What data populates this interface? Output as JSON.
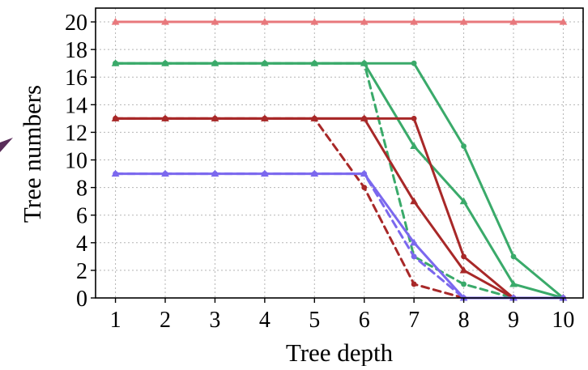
{
  "chart_data": {
    "type": "line",
    "title": "",
    "xlabel": "Tree depth",
    "ylabel": "Tree numbers",
    "xlim": [
      0.6,
      10.4
    ],
    "ylim": [
      0,
      21
    ],
    "x_ticks": [
      1,
      2,
      3,
      4,
      5,
      6,
      7,
      8,
      9,
      10
    ],
    "y_ticks": [
      0,
      2,
      4,
      6,
      8,
      10,
      12,
      14,
      16,
      18,
      20
    ],
    "grid": true,
    "legend": "none",
    "x": [
      1,
      2,
      3,
      4,
      5,
      6,
      7,
      8,
      9,
      10
    ],
    "series": [
      {
        "color": "#e8787c",
        "line_style": "solid",
        "marker": "triangle",
        "values": [
          20,
          20,
          20,
          20,
          20,
          20,
          20,
          20,
          20,
          20
        ]
      },
      {
        "color": "#3aaa6a",
        "line_style": "solid",
        "marker": "triangle",
        "values": [
          17,
          17,
          17,
          17,
          17,
          17,
          11,
          7,
          1,
          0
        ]
      },
      {
        "color": "#3aaa6a",
        "line_style": "solid",
        "marker": "circle",
        "values": [
          17,
          17,
          17,
          17,
          17,
          17,
          17,
          11,
          3,
          0
        ]
      },
      {
        "color": "#3aaa6a",
        "line_style": "dashed",
        "marker": "circle",
        "values": [
          17,
          17,
          17,
          17,
          17,
          17,
          3,
          1,
          0,
          0
        ]
      },
      {
        "color": "#a82828",
        "line_style": "solid",
        "marker": "triangle",
        "values": [
          13,
          13,
          13,
          13,
          13,
          13,
          7,
          2,
          0,
          0
        ]
      },
      {
        "color": "#a82828",
        "line_style": "solid",
        "marker": "circle",
        "values": [
          13,
          13,
          13,
          13,
          13,
          13,
          13,
          3,
          0,
          0
        ]
      },
      {
        "color": "#a82828",
        "line_style": "dashed",
        "marker": "circle",
        "values": [
          13,
          13,
          13,
          13,
          13,
          8,
          1,
          0,
          0,
          0
        ]
      },
      {
        "color": "#7b68ee",
        "line_style": "solid",
        "marker": "triangle",
        "values": [
          9,
          9,
          9,
          9,
          9,
          9,
          4,
          0,
          0,
          0
        ]
      },
      {
        "color": "#7b68ee",
        "line_style": "dashed",
        "marker": "circle",
        "values": [
          9,
          9,
          9,
          9,
          9,
          9,
          3,
          0,
          0,
          0
        ]
      }
    ]
  },
  "decoration": {
    "left_edge_arrow_color": "#5a2d5a"
  }
}
